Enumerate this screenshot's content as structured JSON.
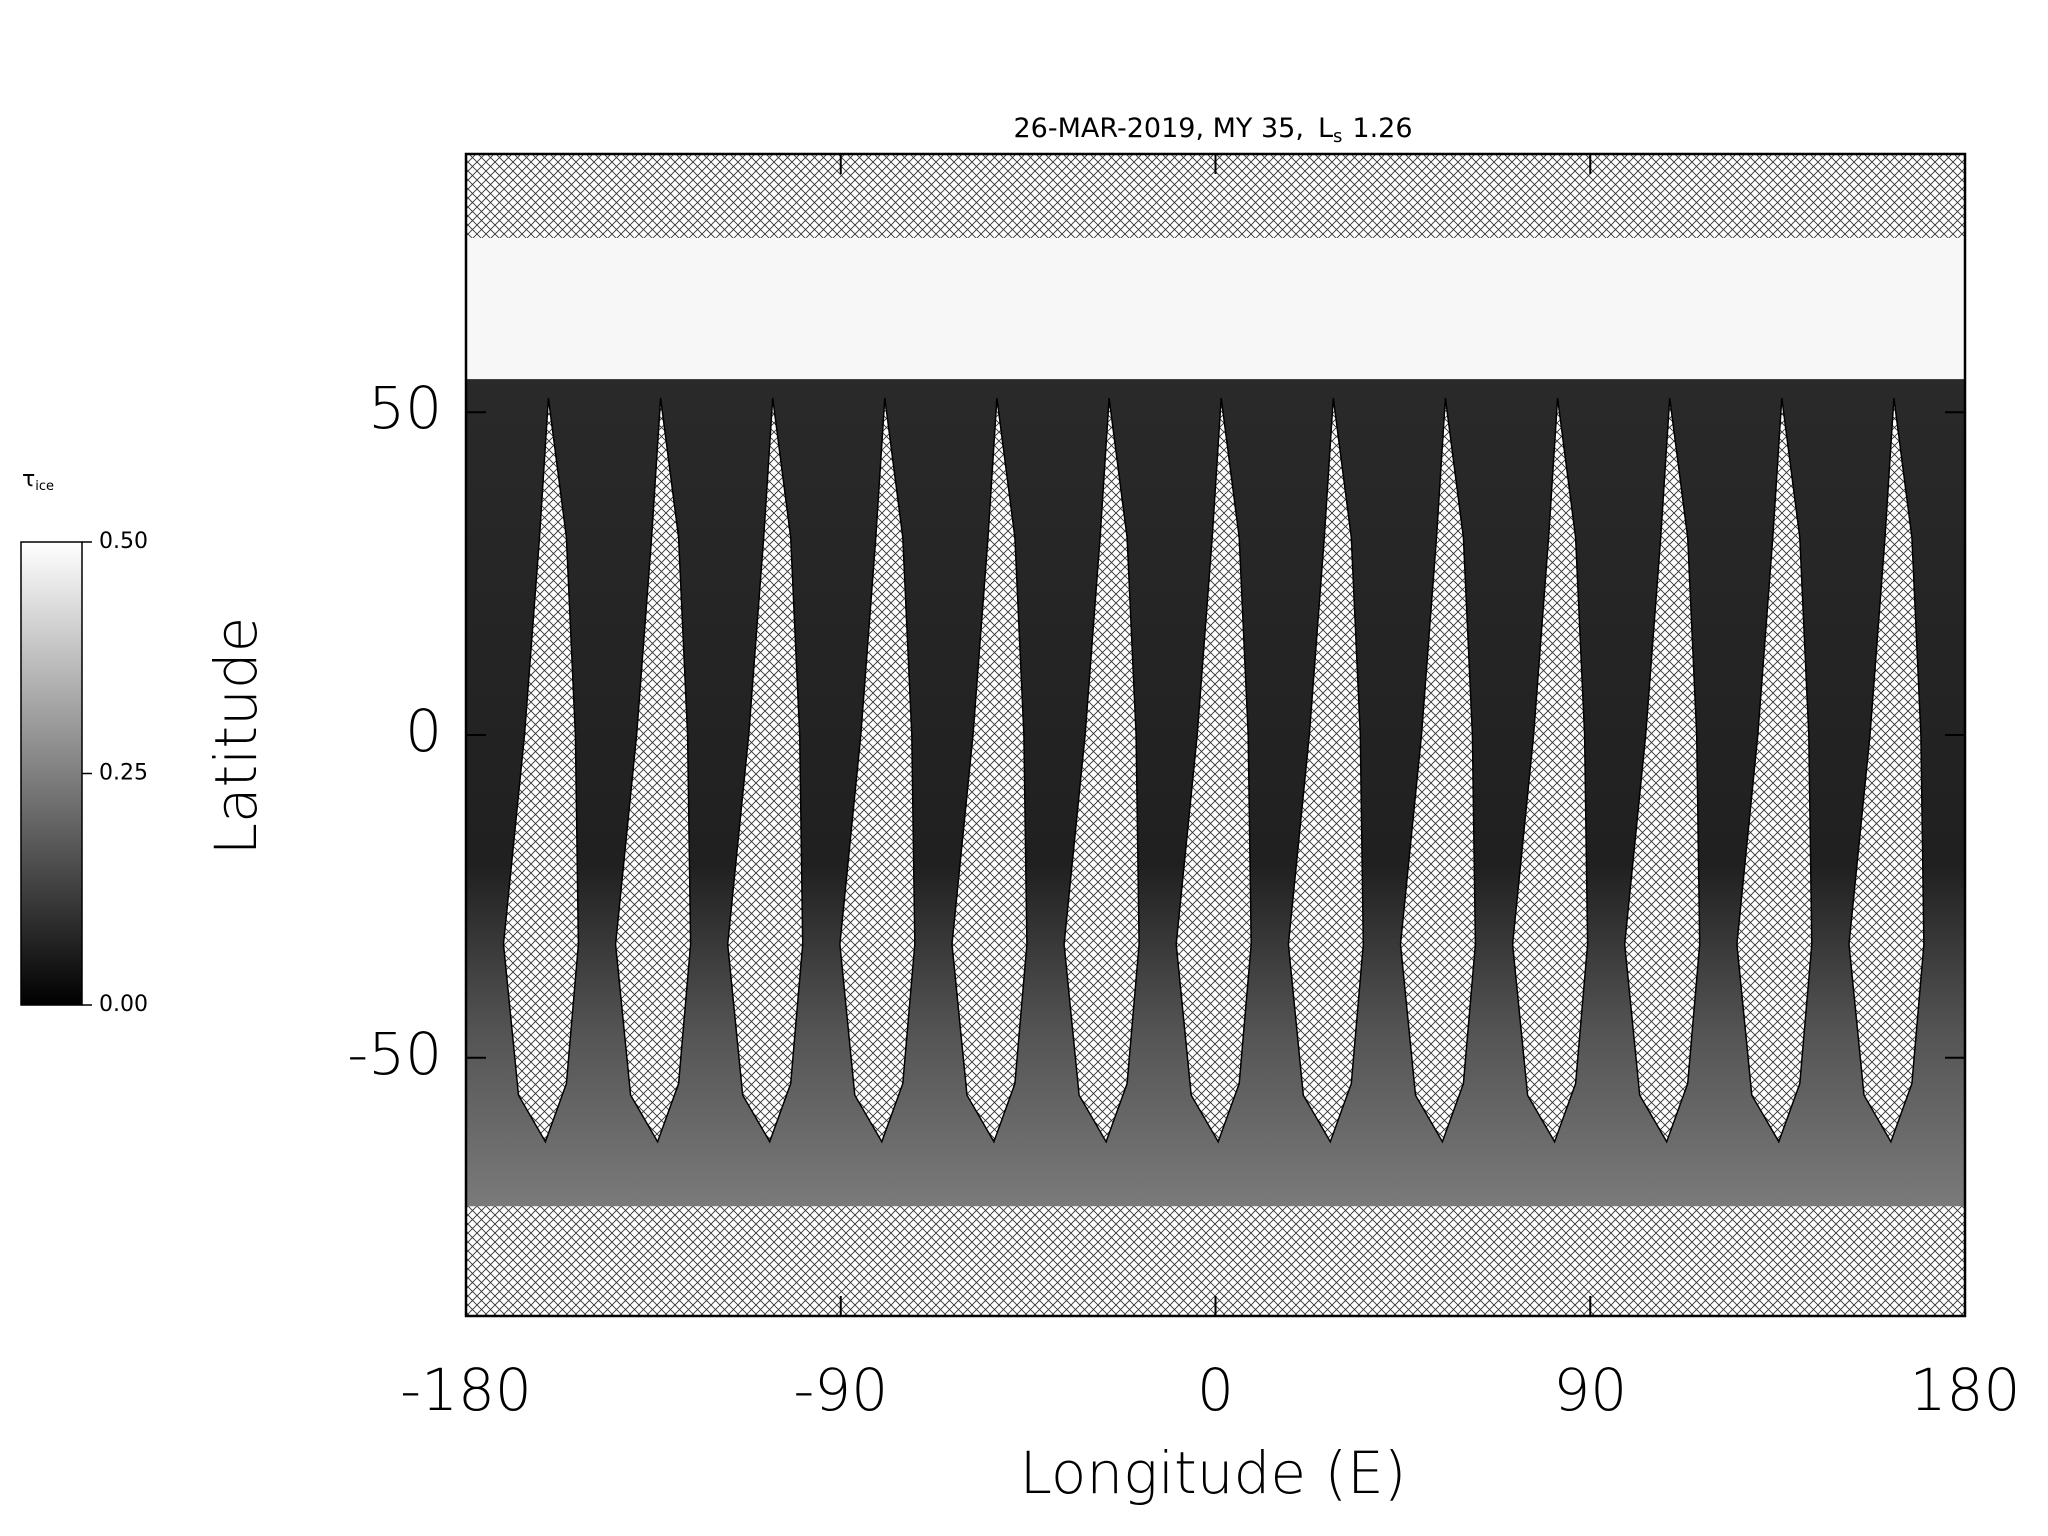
{
  "chart_data": {
    "type": "map",
    "title": [
      "26-MAR-2019, MY 35,",
      "L",
      "s",
      "1.26"
    ],
    "x_label": "Longitude (E)",
    "y_label": "Latitude",
    "xlim": [
      -180,
      180
    ],
    "xticks": [
      -180,
      -90,
      0,
      90,
      180
    ],
    "ylim": [
      -90,
      90
    ],
    "yticks": [
      -50,
      0,
      50
    ],
    "colorbar": {
      "label": [
        "τ",
        "ice"
      ],
      "lim": [
        0,
        0.5
      ],
      "ticks": [
        {
          "value": 0,
          "label": "0.00"
        },
        {
          "value": 0.25,
          "label": "0.25"
        },
        {
          "value": 0.5,
          "label": "0.50"
        }
      ]
    }
  }
}
